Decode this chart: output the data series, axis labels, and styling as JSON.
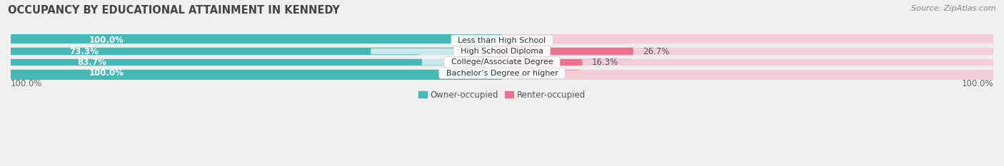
{
  "title": "OCCUPANCY BY EDUCATIONAL ATTAINMENT IN KENNEDY",
  "source": "Source: ZipAtlas.com",
  "categories": [
    "Less than High School",
    "High School Diploma",
    "College/Associate Degree",
    "Bachelor’s Degree or higher"
  ],
  "owner_values": [
    100.0,
    73.3,
    83.7,
    100.0
  ],
  "renter_values": [
    0.0,
    26.7,
    16.3,
    0.0
  ],
  "owner_color": "#45b8b8",
  "renter_color": "#f07090",
  "owner_light": "#c8e8ea",
  "renter_light": "#f5cdd8",
  "bg_color": "#f0f0f0",
  "bar_bg_color": "#e0e0e0",
  "x_left_label": "100.0%",
  "x_right_label": "100.0%",
  "legend_owner": "Owner-occupied",
  "legend_renter": "Renter-occupied",
  "title_fontsize": 10.5,
  "label_fontsize": 8.5,
  "tick_fontsize": 8.5,
  "source_fontsize": 8
}
